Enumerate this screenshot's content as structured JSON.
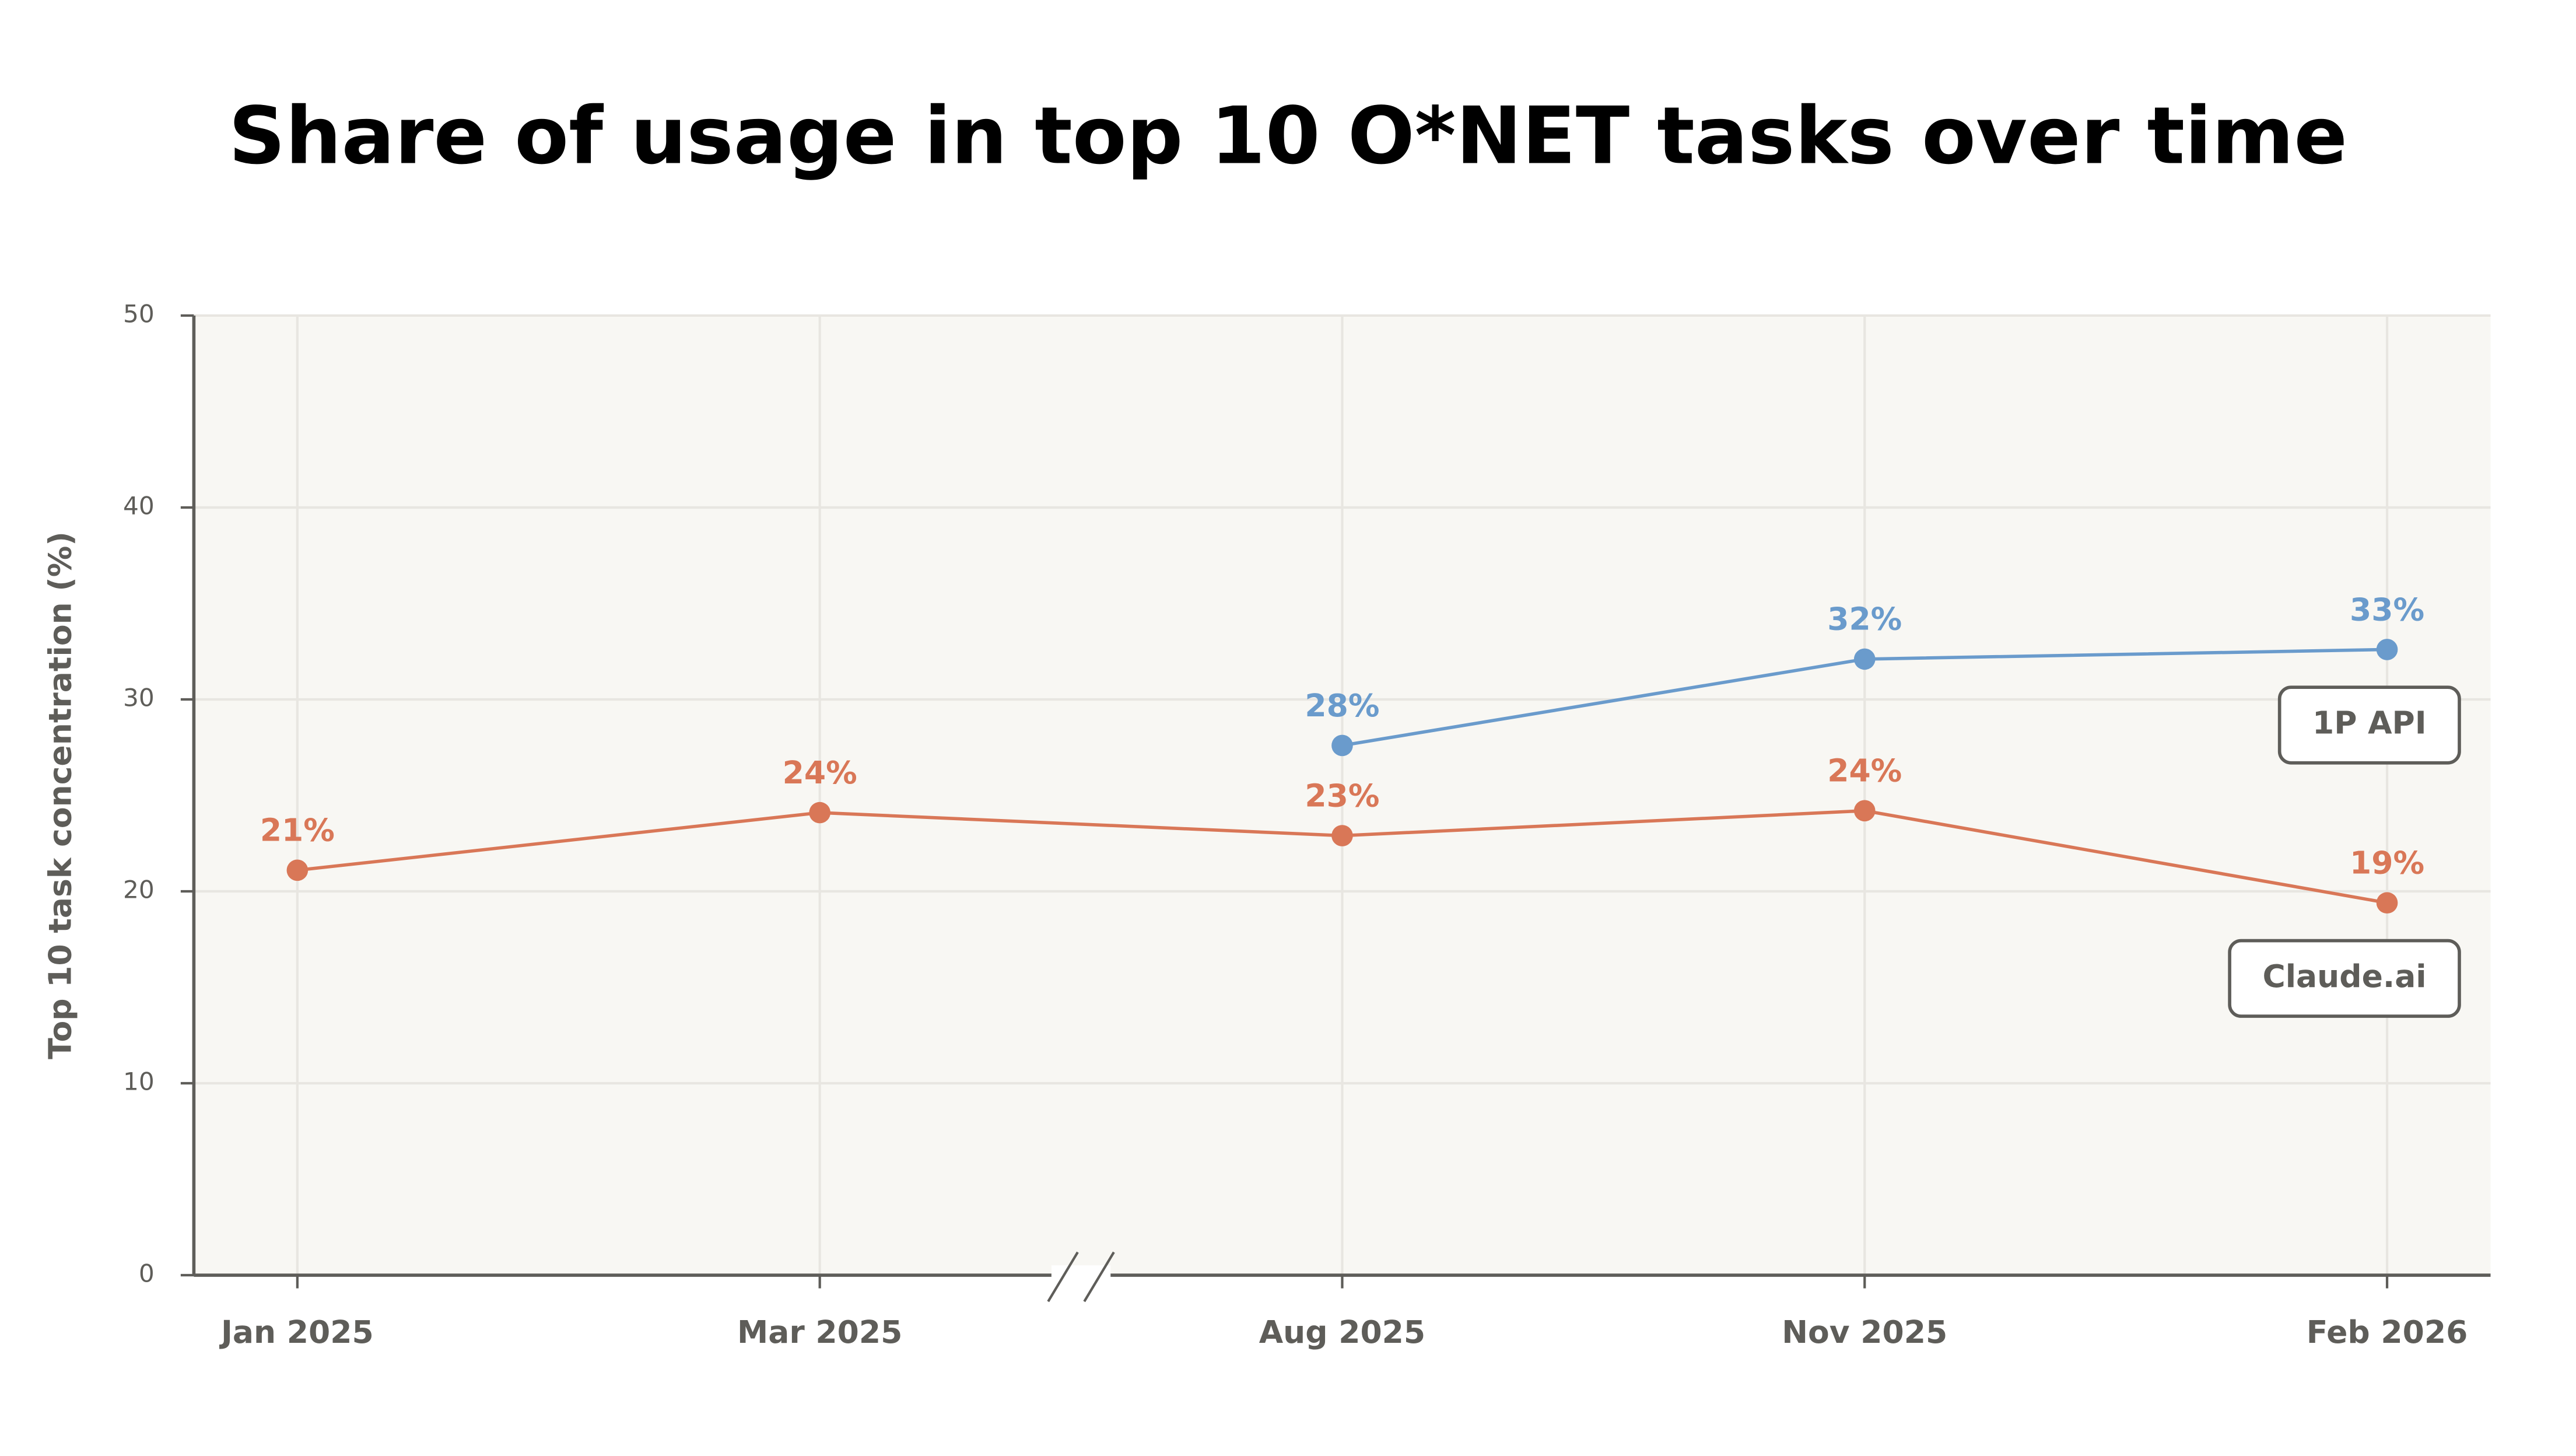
{
  "chart_data": {
    "type": "line",
    "title": "Share of usage in top 10 O*NET tasks over time",
    "y_label": "Top 10 task concentration (%)",
    "categories": [
      "Jan 2025",
      "Mar 2025",
      "Aug 2025",
      "Nov 2025",
      "Feb 2026"
    ],
    "series": [
      {
        "name": "1P API",
        "color": "#6a9bcc",
        "values": [
          null,
          null,
          27.6,
          32.1,
          32.6
        ],
        "value_labels": [
          null,
          null,
          "28%",
          "32%",
          "33%"
        ]
      },
      {
        "name": "Claude.ai",
        "color": "#d97757",
        "values": [
          21.1,
          24.1,
          22.9,
          24.2,
          19.4
        ],
        "value_labels": [
          "21%",
          "24%",
          "23%",
          "24%",
          "19%"
        ]
      }
    ],
    "ylim": [
      0,
      50
    ],
    "yticks": [
      0,
      10,
      20,
      30,
      40,
      50
    ],
    "grid": true
  }
}
